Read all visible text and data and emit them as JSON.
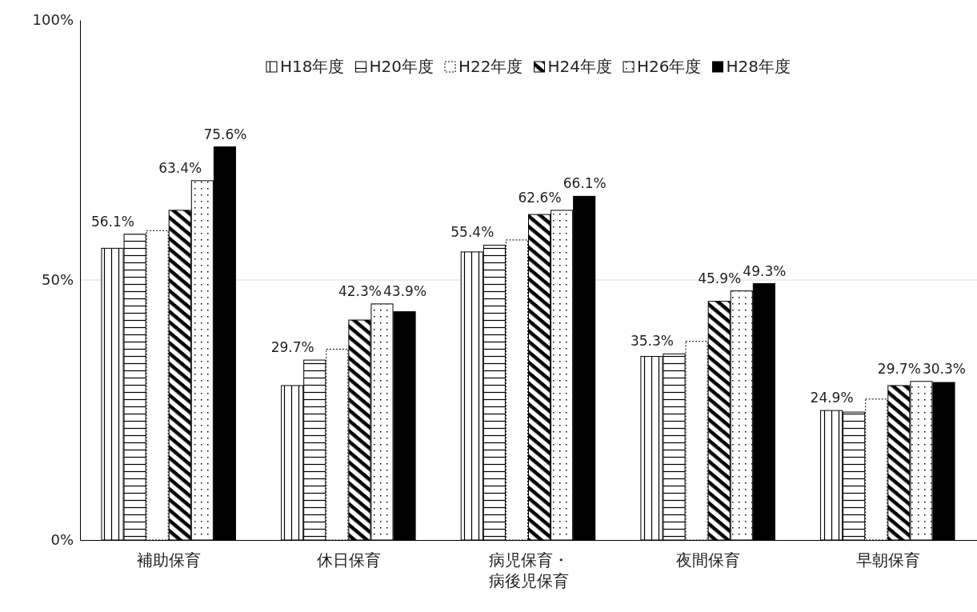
{
  "chart_data": {
    "type": "bar",
    "categories": [
      "補助保育",
      "休日保育",
      "病児保育・病後児保育",
      "夜間保育",
      "早朝保育"
    ],
    "series": [
      {
        "name": "H18年度",
        "color": "#000000",
        "values": [
          56.1,
          29.7,
          55.4,
          35.3,
          24.9
        ],
        "value_labels": [
          "56.1%",
          "29.7%",
          "55.4%",
          "35.3%",
          "24.9%"
        ]
      },
      {
        "name": "H20年度",
        "color": "#000000",
        "values": [
          58.8,
          34.6,
          56.7,
          35.8,
          24.6
        ],
        "value_labels": [
          null,
          null,
          null,
          null,
          null
        ]
      },
      {
        "name": "H22年度",
        "color": "#ffffff",
        "values": [
          59.5,
          36.7,
          57.7,
          38.2,
          27.1
        ],
        "value_labels": [
          null,
          null,
          null,
          null,
          null
        ]
      },
      {
        "name": "H24年度",
        "color": "#000000",
        "values": [
          63.4,
          42.3,
          62.6,
          45.9,
          29.7
        ],
        "value_labels": [
          "63.4%",
          "42.3%",
          "62.6%",
          "45.9%",
          "29.7%"
        ]
      },
      {
        "name": "H26年度",
        "color": "#000000",
        "values": [
          69.1,
          45.4,
          63.4,
          47.9,
          30.5
        ],
        "value_labels": [
          null,
          null,
          null,
          null,
          null
        ]
      },
      {
        "name": "H28年度",
        "color": "#000000",
        "values": [
          75.6,
          43.9,
          66.1,
          49.3,
          30.3
        ],
        "value_labels": [
          "75.6%",
          "43.9%",
          "66.1%",
          "49.3%",
          "30.3%"
        ]
      }
    ],
    "ylim": [
      0,
      100
    ],
    "yticks": [
      {
        "value": 0,
        "label": "0%"
      },
      {
        "value": 50,
        "label": "50%"
      },
      {
        "value": 100,
        "label": "100%"
      }
    ],
    "grid": "y",
    "legend": "top"
  }
}
